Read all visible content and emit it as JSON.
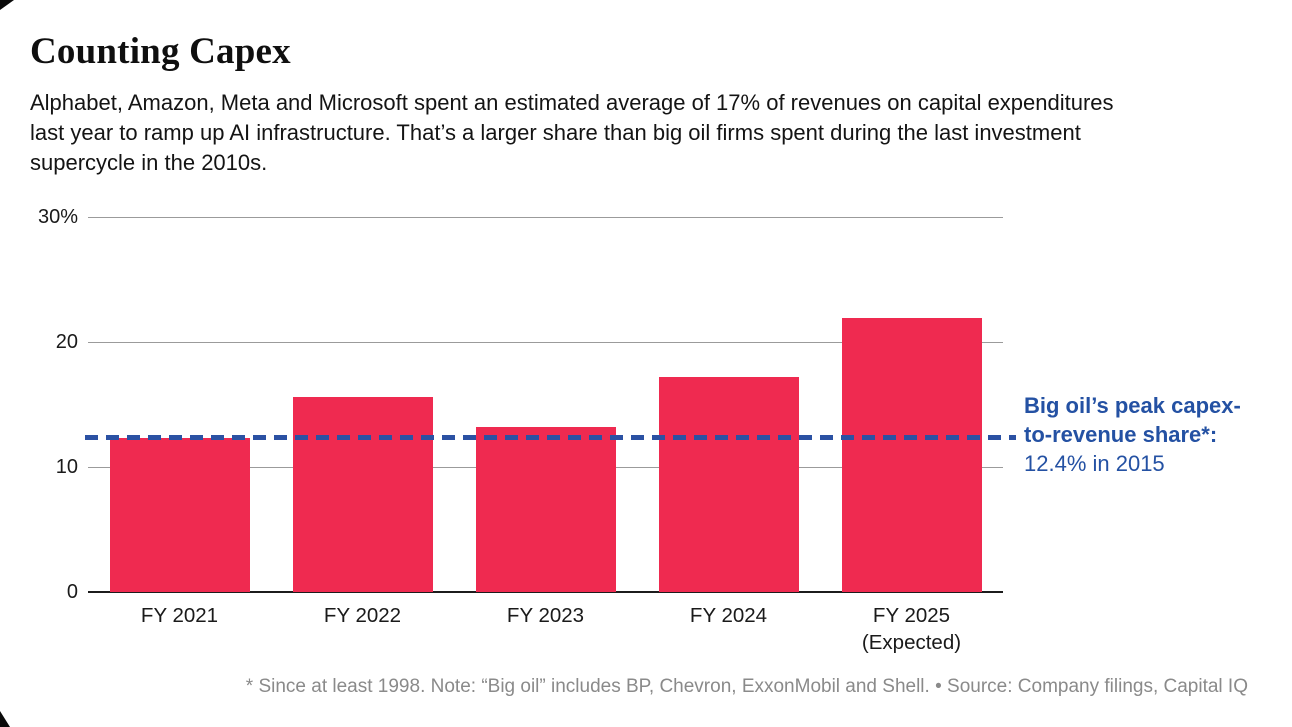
{
  "header": {
    "title": "Counting Capex",
    "subtitle_lines": [
      "Alphabet, Amazon, Meta and Microsoft spent an estimated average of 17% of revenues on capital expenditures",
      "last year to ramp up AI infrastructure. That’s a larger share than big oil firms spent during the last investment",
      "supercycle in the 2010s."
    ]
  },
  "chart_data": {
    "type": "bar",
    "title": "Counting Capex",
    "categories": [
      "FY 2021",
      "FY 2022",
      "FY 2023",
      "FY 2024",
      "FY 2025"
    ],
    "category_sublabels": [
      "",
      "",
      "",
      "",
      "(Expected)"
    ],
    "values": [
      12.3,
      15.6,
      13.2,
      17.2,
      21.9
    ],
    "unit": "%",
    "ylim": [
      0,
      30
    ],
    "yticks": [
      {
        "value": 30,
        "label": "30%"
      },
      {
        "value": 20,
        "label": "20"
      },
      {
        "value": 10,
        "label": "10"
      },
      {
        "value": 0,
        "label": "0"
      }
    ],
    "grid": "horizontal",
    "legend": "none",
    "bar_color": "#ef2a50",
    "reference_line": {
      "value": 12.4,
      "style": "dashed",
      "color": "#2b51a3",
      "label_lines": [
        "Big oil’s peak capex-",
        "to-revenue share*:",
        "12.4% in 2015"
      ]
    }
  },
  "footnote": "* Since at least 1998. Note: “Big oil” includes BP, Chevron, ExxonMobil and Shell. •  Source: Company filings, Capital IQ"
}
